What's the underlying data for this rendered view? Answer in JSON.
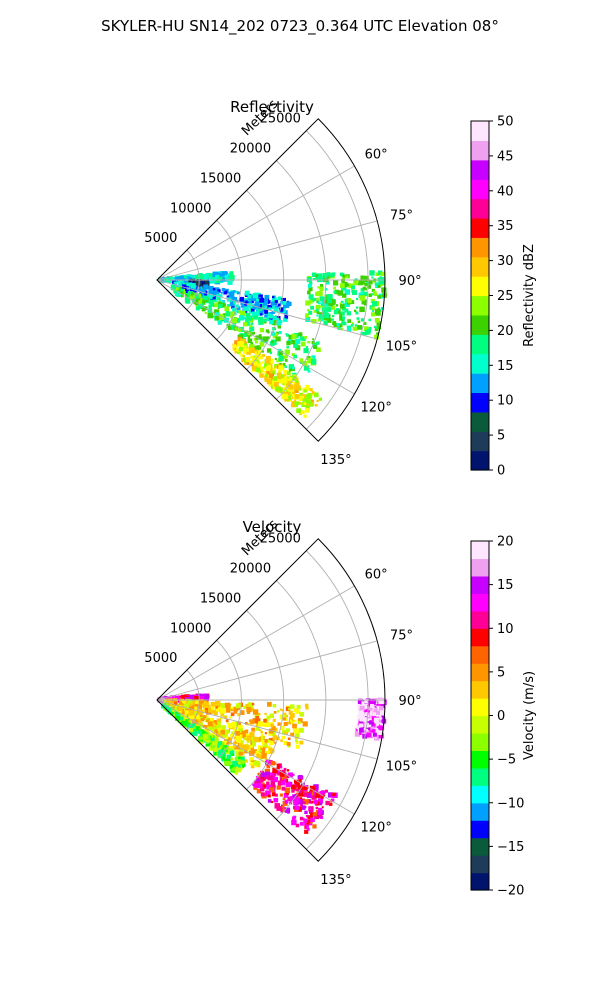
{
  "figure": {
    "title": "SKYLER-HU  SN14_202  0723_0.364 UTC Elevation 08°"
  },
  "chart_data": [
    {
      "type": "heatmap",
      "projection": "polar-sector",
      "title": "Reflectivity",
      "radial_axis_label": "Meters",
      "range_ticks": [
        "5000",
        "10000",
        "15000",
        "20000",
        "25000"
      ],
      "range_tick_values": [
        5000,
        10000,
        15000,
        20000,
        25000
      ],
      "range_max": 27000,
      "azimuth_ticks": [
        "60°",
        "75°",
        "90°",
        "105°",
        "120°",
        "135°"
      ],
      "azimuth_tick_values": [
        60,
        75,
        90,
        105,
        120,
        135
      ],
      "azimuth_range": [
        45,
        135
      ],
      "grid": true,
      "colorbar": {
        "label": "Reflectivity dBZ",
        "min": 0,
        "max": 50,
        "ticks": [
          "0",
          "5",
          "10",
          "15",
          "20",
          "25",
          "30",
          "35",
          "40",
          "45",
          "50"
        ],
        "tick_values": [
          0,
          5,
          10,
          15,
          20,
          25,
          30,
          35,
          40,
          45,
          50
        ],
        "placement": "right",
        "colors": [
          "#00146e",
          "#1e3c5a",
          "#0a5a3c",
          "#0000ff",
          "#00a0ff",
          "#00ffcc",
          "#00ff80",
          "#3cd200",
          "#8cff00",
          "#ffff00",
          "#ffc800",
          "#ff9600",
          "#ff0000",
          "#ff0096",
          "#ff00ff",
          "#c800ff",
          "#f0a0f0",
          "#ffe6ff"
        ]
      },
      "echoes": [
        {
          "region": "near-range east band",
          "az": [
            84,
            92
          ],
          "range": [
            300,
            9000
          ],
          "value": 15
        },
        {
          "region": "near-range blue streak",
          "az": [
            92,
            98
          ],
          "range": [
            4000,
            6000
          ],
          "value": 5
        },
        {
          "region": "east-southeast spokes",
          "az": [
            98,
            110
          ],
          "range": [
            2000,
            16000
          ],
          "value": 13
        },
        {
          "region": "southeast main echo",
          "az": [
            110,
            125
          ],
          "range": [
            2000,
            21000
          ],
          "value": 20
        },
        {
          "region": "south-southeast core",
          "az": [
            125,
            133
          ],
          "range": [
            12000,
            24000
          ],
          "value": 27
        },
        {
          "region": "far east speckles",
          "az": [
            88,
            105
          ],
          "range": [
            18000,
            27000
          ],
          "value": 20
        }
      ]
    },
    {
      "type": "heatmap",
      "projection": "polar-sector",
      "title": "Velocity",
      "radial_axis_label": "Meters",
      "range_ticks": [
        "5000",
        "10000",
        "15000",
        "20000",
        "25000"
      ],
      "range_tick_values": [
        5000,
        10000,
        15000,
        20000,
        25000
      ],
      "range_max": 27000,
      "azimuth_ticks": [
        "60°",
        "75°",
        "90°",
        "105°",
        "120°",
        "135°"
      ],
      "azimuth_tick_values": [
        60,
        75,
        90,
        105,
        120,
        135
      ],
      "azimuth_range": [
        45,
        135
      ],
      "grid": true,
      "colorbar": {
        "label": "Velocity (m/s)",
        "min": -20,
        "max": 20,
        "ticks": [
          "−20",
          "−15",
          "−10",
          "−5",
          "0",
          "5",
          "10",
          "15",
          "20"
        ],
        "tick_values": [
          -20,
          -15,
          -10,
          -5,
          0,
          5,
          10,
          15,
          20
        ],
        "placement": "right",
        "colors": [
          "#00146e",
          "#1e3c5a",
          "#0a5a3c",
          "#0000ff",
          "#00a0ff",
          "#00ffff",
          "#00ff80",
          "#00ff00",
          "#8cff00",
          "#c8ff00",
          "#ffff00",
          "#ffc800",
          "#ff9600",
          "#ff6400",
          "#ff0000",
          "#ff0096",
          "#ff00ff",
          "#c800ff",
          "#f0a0f0",
          "#ffe6ff"
        ]
      },
      "echoes": [
        {
          "region": "near-range east band",
          "az": [
            84,
            90
          ],
          "range": [
            300,
            6000
          ],
          "value": 12
        },
        {
          "region": "near-range magenta",
          "az": [
            82,
            86
          ],
          "range": [
            300,
            2000
          ],
          "value": 15
        },
        {
          "region": "east-southeast spokes",
          "az": [
            92,
            110
          ],
          "range": [
            1000,
            18000
          ],
          "value": 3
        },
        {
          "region": "southeast main echo",
          "az": [
            110,
            125
          ],
          "range": [
            2000,
            15000
          ],
          "value": 2
        },
        {
          "region": "southwest-side yellow-green",
          "az": [
            124,
            133
          ],
          "range": [
            1000,
            13000
          ],
          "value": -4
        },
        {
          "region": "south-southeast red core",
          "az": [
            118,
            132
          ],
          "range": [
            15000,
            24000
          ],
          "value": 11
        },
        {
          "region": "far east magenta",
          "az": [
            90,
            100
          ],
          "range": [
            24000,
            27000
          ],
          "value": 17
        }
      ]
    }
  ]
}
